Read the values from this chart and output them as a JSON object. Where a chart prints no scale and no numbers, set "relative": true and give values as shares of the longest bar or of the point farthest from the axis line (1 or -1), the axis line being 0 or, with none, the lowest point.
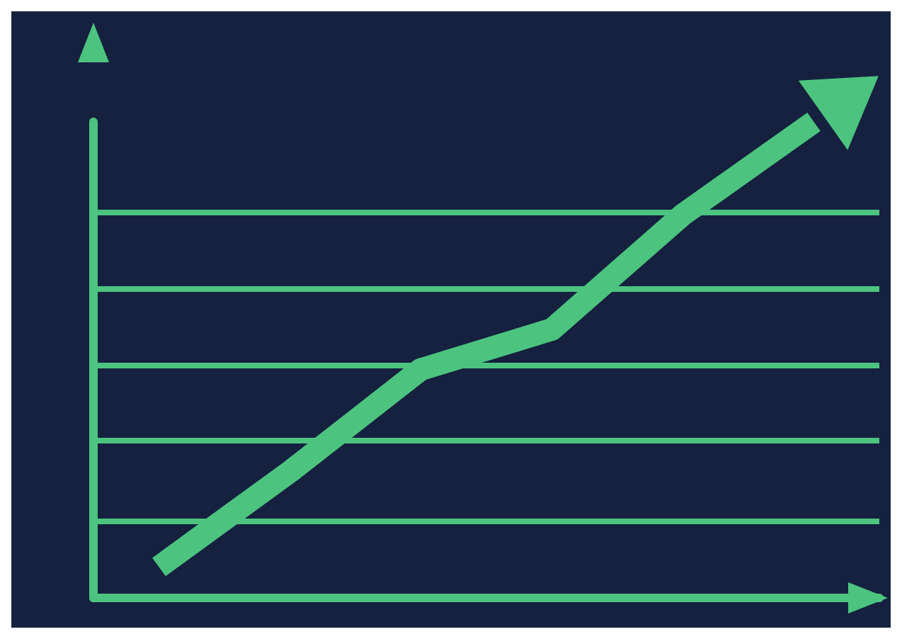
{
  "chart_data": {
    "type": "line",
    "relative": true,
    "categories": [
      null,
      null,
      null,
      null,
      null,
      null
    ],
    "series": [
      {
        "color": "#4cc47f",
        "values": [
          0.065,
          0.265,
          0.48,
          0.564,
          0.805,
          1
        ]
      }
    ],
    "ref_lines": [
      {
        "axis": "y",
        "value": 0.16,
        "color": "#4cc47f"
      },
      {
        "axis": "y",
        "value": 0.33,
        "color": "#4cc47f"
      },
      {
        "axis": "y",
        "value": 0.49,
        "color": "#4cc47f"
      },
      {
        "axis": "y",
        "value": 0.649,
        "color": "#4cc47f"
      },
      {
        "axis": "y",
        "value": 0.81,
        "color": "#4cc47f"
      }
    ]
  }
}
